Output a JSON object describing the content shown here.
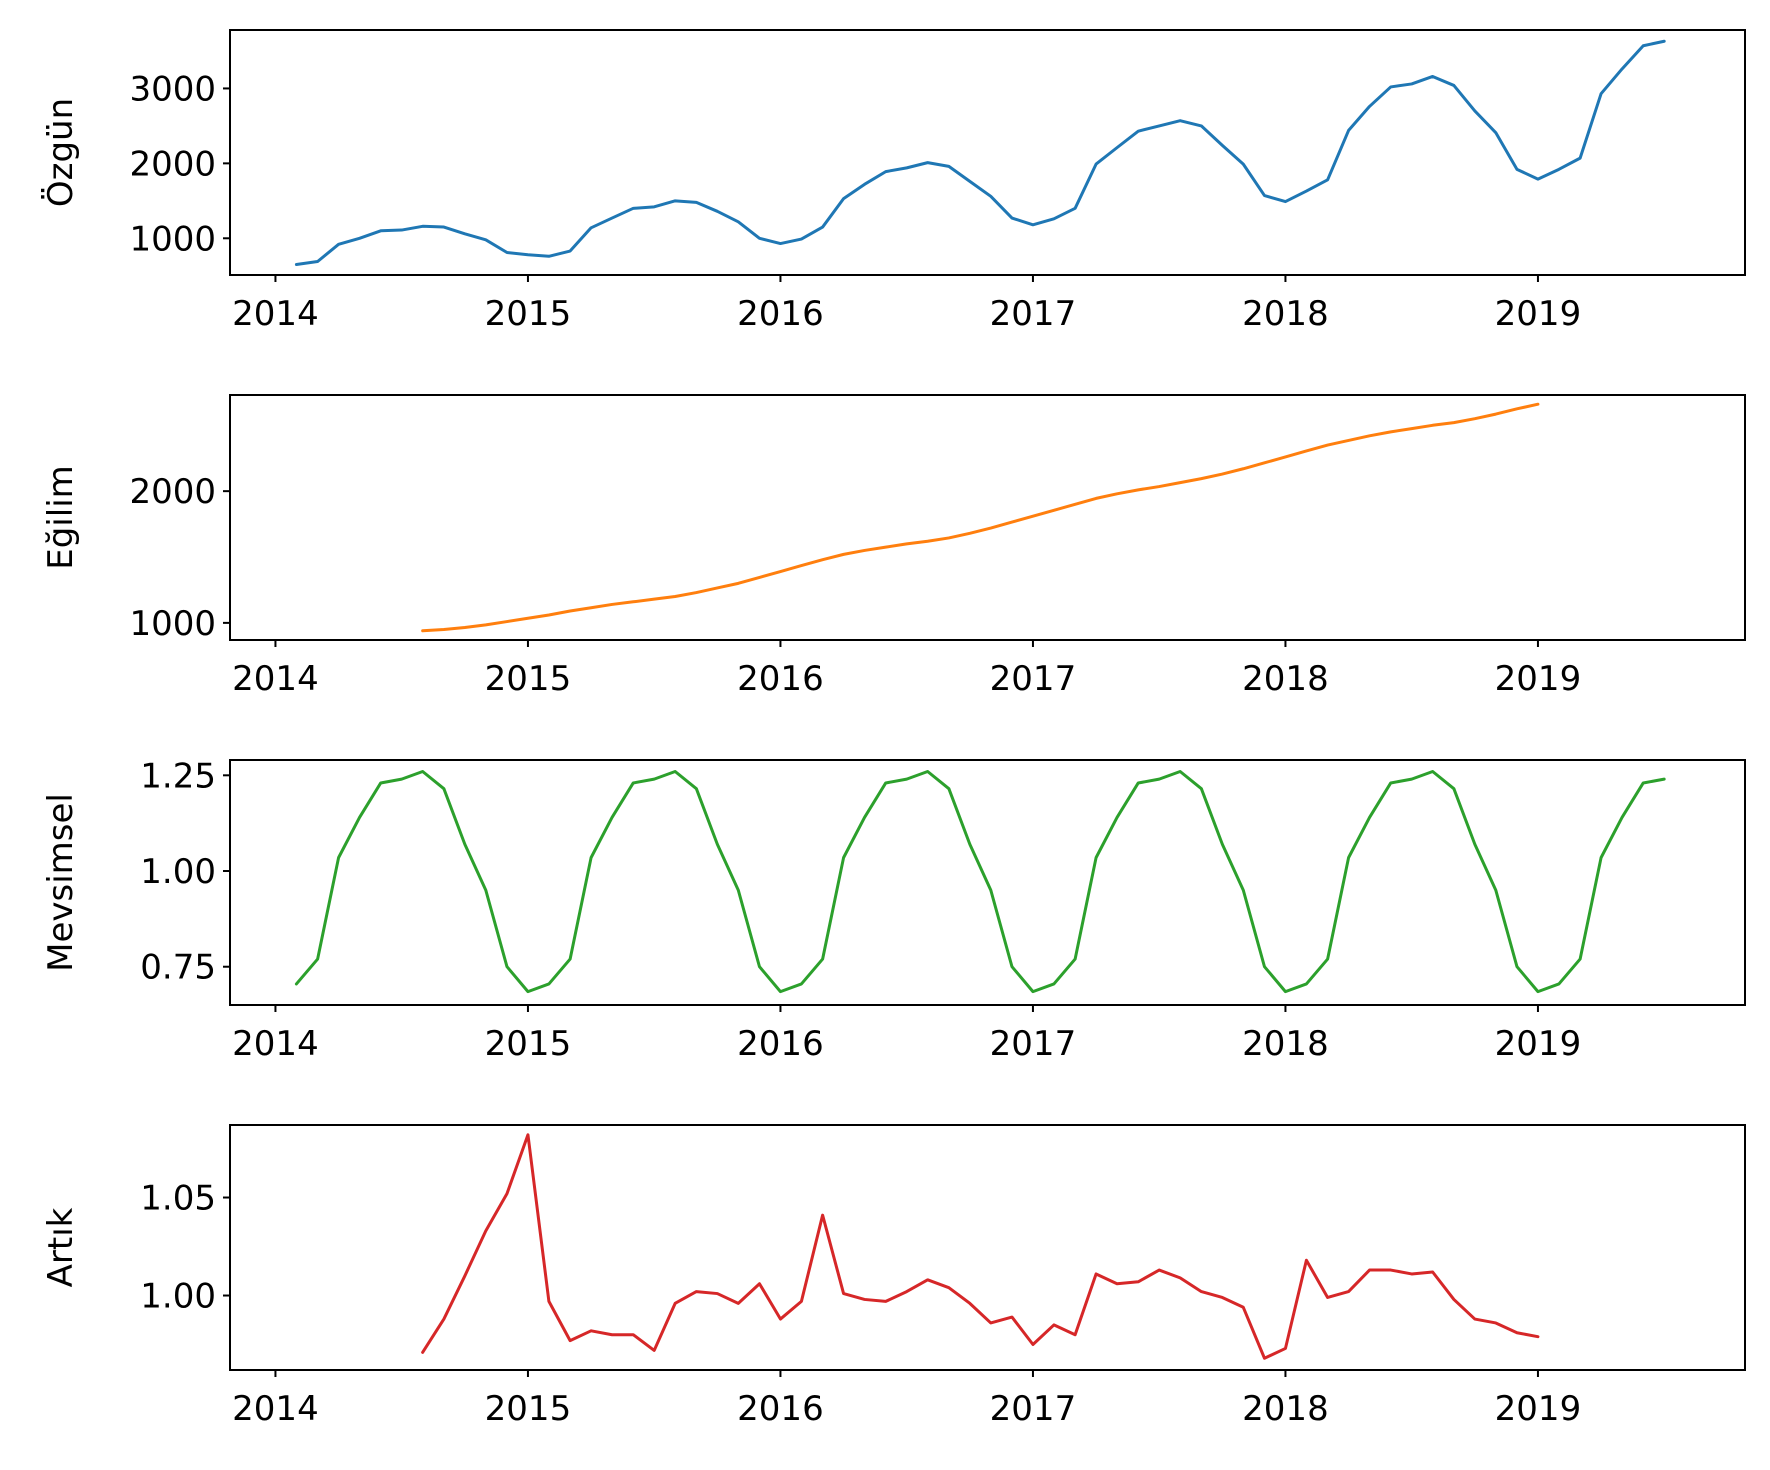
{
  "chart_data": [
    {
      "type": "line",
      "ylabel": "Özgün",
      "xlabel": "",
      "title": "",
      "xlim": [
        2013.82,
        2019.82
      ],
      "ylim": [
        510,
        3780
      ],
      "xticks": [
        2014,
        2015,
        2016,
        2017,
        2018,
        2019
      ],
      "xtick_labels": [
        "2014",
        "2015",
        "2016",
        "2017",
        "2018",
        "2019"
      ],
      "yticks": [
        1000,
        2000,
        3000
      ],
      "ytick_labels": [
        "1000",
        "2000",
        "3000"
      ],
      "color": "#1f77b4",
      "x": [
        2014.083,
        2014.167,
        2014.25,
        2014.333,
        2014.417,
        2014.5,
        2014.583,
        2014.667,
        2014.75,
        2014.833,
        2014.917,
        2015.0,
        2015.083,
        2015.167,
        2015.25,
        2015.333,
        2015.417,
        2015.5,
        2015.583,
        2015.667,
        2015.75,
        2015.833,
        2015.917,
        2016.0,
        2016.083,
        2016.167,
        2016.25,
        2016.333,
        2016.417,
        2016.5,
        2016.583,
        2016.667,
        2016.75,
        2016.833,
        2016.917,
        2017.0,
        2017.083,
        2017.167,
        2017.25,
        2017.333,
        2017.417,
        2017.5,
        2017.583,
        2017.667,
        2017.75,
        2017.833,
        2017.917,
        2018.0,
        2018.083,
        2018.167,
        2018.25,
        2018.333,
        2018.417,
        2018.5,
        2018.583,
        2018.667,
        2018.75,
        2018.833,
        2018.917,
        2019.0,
        2019.083,
        2019.167,
        2019.25,
        2019.333,
        2019.417,
        2019.5
      ],
      "y": [
        650,
        690,
        920,
        1000,
        1100,
        1110,
        1160,
        1150,
        1060,
        980,
        810,
        780,
        760,
        830,
        1140,
        1270,
        1400,
        1420,
        1500,
        1480,
        1360,
        1220,
        1000,
        930,
        990,
        1150,
        1530,
        1720,
        1890,
        1940,
        2010,
        1960,
        1760,
        1560,
        1270,
        1180,
        1260,
        1400,
        1990,
        2210,
        2430,
        2500,
        2570,
        2500,
        2240,
        1990,
        1570,
        1490,
        1630,
        1780,
        2440,
        2760,
        3020,
        3060,
        3160,
        3040,
        2700,
        2410,
        1920,
        1790,
        1920,
        2070,
        2930,
        3260,
        3570,
        3630
      ]
    },
    {
      "type": "line",
      "ylabel": "Eğilim",
      "xlabel": "",
      "title": "",
      "xlim": [
        2013.82,
        2019.82
      ],
      "ylim": [
        870,
        2730
      ],
      "xticks": [
        2014,
        2015,
        2016,
        2017,
        2018,
        2019
      ],
      "xtick_labels": [
        "2014",
        "2015",
        "2016",
        "2017",
        "2018",
        "2019"
      ],
      "yticks": [
        1000,
        2000
      ],
      "ytick_labels": [
        "1000",
        "2000"
      ],
      "color": "#ff7f0e",
      "x": [
        2014.583,
        2014.667,
        2014.75,
        2014.833,
        2014.917,
        2015.0,
        2015.083,
        2015.167,
        2015.25,
        2015.333,
        2015.417,
        2015.5,
        2015.583,
        2015.667,
        2015.75,
        2015.833,
        2015.917,
        2016.0,
        2016.083,
        2016.167,
        2016.25,
        2016.333,
        2016.417,
        2016.5,
        2016.583,
        2016.667,
        2016.75,
        2016.833,
        2016.917,
        2017.0,
        2017.083,
        2017.167,
        2017.25,
        2017.333,
        2017.417,
        2017.5,
        2017.583,
        2017.667,
        2017.75,
        2017.833,
        2017.917,
        2018.0,
        2018.083,
        2018.167,
        2018.25,
        2018.333,
        2018.417,
        2018.5,
        2018.583,
        2018.667,
        2018.75,
        2018.833,
        2018.917,
        2019.0
      ],
      "y": [
        940,
        950,
        965,
        985,
        1010,
        1035,
        1060,
        1090,
        1115,
        1140,
        1160,
        1180,
        1200,
        1230,
        1265,
        1300,
        1345,
        1390,
        1435,
        1480,
        1520,
        1550,
        1575,
        1600,
        1620,
        1645,
        1680,
        1720,
        1765,
        1810,
        1855,
        1900,
        1945,
        1980,
        2010,
        2035,
        2065,
        2095,
        2130,
        2170,
        2215,
        2260,
        2305,
        2350,
        2385,
        2420,
        2450,
        2475,
        2500,
        2520,
        2550,
        2585,
        2625,
        2660
      ]
    },
    {
      "type": "line",
      "ylabel": "Mevsimsel",
      "xlabel": "",
      "title": "",
      "xlim": [
        2013.82,
        2019.82
      ],
      "ylim": [
        0.65,
        1.29
      ],
      "xticks": [
        2014,
        2015,
        2016,
        2017,
        2018,
        2019
      ],
      "xtick_labels": [
        "2014",
        "2015",
        "2016",
        "2017",
        "2018",
        "2019"
      ],
      "yticks": [
        0.75,
        1.0,
        1.25
      ],
      "ytick_labels": [
        "0.75",
        "1.00",
        "1.25"
      ],
      "color": "#2ca02c",
      "x": [
        2014.083,
        2014.167,
        2014.25,
        2014.333,
        2014.417,
        2014.5,
        2014.583,
        2014.667,
        2014.75,
        2014.833,
        2014.917,
        2015.0,
        2015.083,
        2015.167,
        2015.25,
        2015.333,
        2015.417,
        2015.5,
        2015.583,
        2015.667,
        2015.75,
        2015.833,
        2015.917,
        2016.0,
        2016.083,
        2016.167,
        2016.25,
        2016.333,
        2016.417,
        2016.5,
        2016.583,
        2016.667,
        2016.75,
        2016.833,
        2016.917,
        2017.0,
        2017.083,
        2017.167,
        2017.25,
        2017.333,
        2017.417,
        2017.5,
        2017.583,
        2017.667,
        2017.75,
        2017.833,
        2017.917,
        2018.0,
        2018.083,
        2018.167,
        2018.25,
        2018.333,
        2018.417,
        2018.5,
        2018.583,
        2018.667,
        2018.75,
        2018.833,
        2018.917,
        2019.0,
        2019.083,
        2019.167,
        2019.25,
        2019.333,
        2019.417,
        2019.5
      ],
      "y": [
        0.705,
        0.77,
        1.035,
        1.14,
        1.23,
        1.24,
        1.26,
        1.215,
        1.07,
        0.95,
        0.75,
        0.685,
        0.705,
        0.77,
        1.035,
        1.14,
        1.23,
        1.24,
        1.26,
        1.215,
        1.07,
        0.95,
        0.75,
        0.685,
        0.705,
        0.77,
        1.035,
        1.14,
        1.23,
        1.24,
        1.26,
        1.215,
        1.07,
        0.95,
        0.75,
        0.685,
        0.705,
        0.77,
        1.035,
        1.14,
        1.23,
        1.24,
        1.26,
        1.215,
        1.07,
        0.95,
        0.75,
        0.685,
        0.705,
        0.77,
        1.035,
        1.14,
        1.23,
        1.24,
        1.26,
        1.215,
        1.07,
        0.95,
        0.75,
        0.685,
        0.705,
        0.77,
        1.035,
        1.14,
        1.23,
        1.24
      ]
    },
    {
      "type": "line",
      "ylabel": "Artık",
      "xlabel": "",
      "title": "",
      "xlim": [
        2013.82,
        2019.82
      ],
      "ylim": [
        0.962,
        1.087
      ],
      "xticks": [
        2014,
        2015,
        2016,
        2017,
        2018,
        2019
      ],
      "xtick_labels": [
        "2014",
        "2015",
        "2016",
        "2017",
        "2018",
        "2019"
      ],
      "yticks": [
        1.0,
        1.05
      ],
      "ytick_labels": [
        "1.00",
        "1.05"
      ],
      "color": "#d62728",
      "x": [
        2014.583,
        2014.667,
        2014.75,
        2014.833,
        2014.917,
        2015.0,
        2015.083,
        2015.167,
        2015.25,
        2015.333,
        2015.417,
        2015.5,
        2015.583,
        2015.667,
        2015.75,
        2015.833,
        2015.917,
        2016.0,
        2016.083,
        2016.167,
        2016.25,
        2016.333,
        2016.417,
        2016.5,
        2016.583,
        2016.667,
        2016.75,
        2016.833,
        2016.917,
        2017.0,
        2017.083,
        2017.167,
        2017.25,
        2017.333,
        2017.417,
        2017.5,
        2017.583,
        2017.667,
        2017.75,
        2017.833,
        2017.917,
        2018.0,
        2018.083,
        2018.167,
        2018.25,
        2018.333,
        2018.417,
        2018.5,
        2018.583,
        2018.667,
        2018.75,
        2018.833,
        2018.917,
        2019.0
      ],
      "y": [
        0.971,
        0.988,
        1.01,
        1.033,
        1.052,
        1.082,
        0.997,
        0.977,
        0.982,
        0.98,
        0.98,
        0.972,
        0.996,
        1.002,
        1.001,
        0.996,
        1.006,
        0.988,
        0.997,
        1.041,
        1.001,
        0.998,
        0.997,
        1.002,
        1.008,
        1.004,
        0.996,
        0.986,
        0.989,
        0.975,
        0.985,
        0.98,
        1.011,
        1.006,
        1.007,
        1.013,
        1.009,
        1.002,
        0.999,
        0.994,
        0.968,
        0.973,
        1.018,
        0.999,
        1.002,
        1.013,
        1.013,
        1.011,
        1.012,
        0.998,
        0.988,
        0.986,
        0.981,
        0.979
      ]
    }
  ]
}
